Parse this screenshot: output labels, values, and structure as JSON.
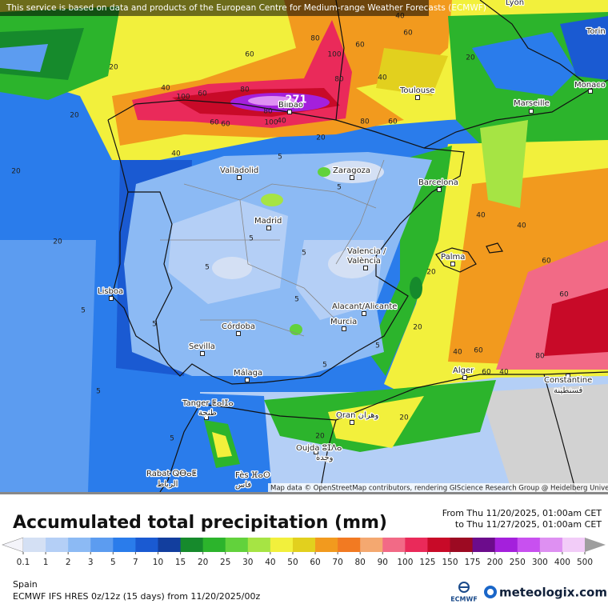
{
  "header": {
    "notice": "This service is based on data and products of the European Centre for Medium-range Weather Forecasts (ECMWF)"
  },
  "map": {
    "cities": [
      "Lyon",
      "Torin",
      "Monaco",
      "Toulouse",
      "Marseille",
      "Bilbao",
      "Valladolid",
      "Zaragoza",
      "Barcelona",
      "Madrid",
      "Valencia /",
      "València",
      "Palma",
      "Lisboa",
      "Alacant/Alicante",
      "Murcia",
      "Córdoba",
      "Sevilla",
      "Málaga",
      "Alger",
      "Constantine",
      "قسنطينة",
      "Tanger ⵟⴰⵏⵊⴰ",
      "طنجة",
      "Oran وهران",
      "Oujda ⵓⵊⴷⴰ",
      "وجدة",
      "Rabat ⵕⴱⴰⵟ",
      "الرباط",
      "Fès ⴼⴰⵙ",
      "فاس"
    ],
    "contour_labels": [
      20,
      40,
      40,
      80,
      60,
      100,
      60,
      60,
      80,
      100,
      40,
      100,
      80,
      80,
      60,
      60,
      40,
      20,
      40,
      60,
      80,
      60,
      20,
      5,
      5,
      5,
      5,
      5,
      5,
      5,
      5,
      5,
      5,
      20,
      20,
      40,
      40,
      60,
      60,
      80,
      40,
      60,
      20,
      20,
      40,
      60,
      20,
      20,
      20,
      5,
      5
    ],
    "max_value": 271,
    "attribution": "Map data © OpenStreetMap contributors, rendering GIScience Research Group @ Heidelberg University"
  },
  "legend": {
    "title": "Accumulated total precipitation (mm)",
    "period_from": "From Thu 11/20/2025, 01:00am CET",
    "period_to": "to Thu 11/27/2025, 01:00am CET",
    "ticks": [
      0.1,
      1,
      2,
      3,
      5,
      7,
      10,
      15,
      20,
      25,
      30,
      40,
      50,
      60,
      70,
      80,
      90,
      100,
      125,
      150,
      175,
      200,
      250,
      300,
      400,
      500
    ],
    "colors": [
      "#f4f4fa",
      "#d4e0f4",
      "#b4cff6",
      "#8cbaf4",
      "#5c9cf0",
      "#2a7ceb",
      "#1a5ad2",
      "#123e9e",
      "#168a2c",
      "#2cb42c",
      "#62d23c",
      "#a6e444",
      "#f2f03c",
      "#e2d01e",
      "#f29a1e",
      "#f27a22",
      "#f4a870",
      "#f26a86",
      "#ea2a5a",
      "#c80a28",
      "#9c0a22",
      "#6c0c8c",
      "#a420dc",
      "#c850f0",
      "#de90f2",
      "#f2ccf8",
      "#ece8f4",
      "#d2d2d2",
      "#9e9e9e"
    ]
  },
  "footer": {
    "region": "Spain",
    "model": "ECMWF IFS HRES 0z/12z (15 days) from 11/20/2025/00z",
    "logo_ecmwf": "ECMWF",
    "logo_meteologix": "meteologix.com"
  }
}
